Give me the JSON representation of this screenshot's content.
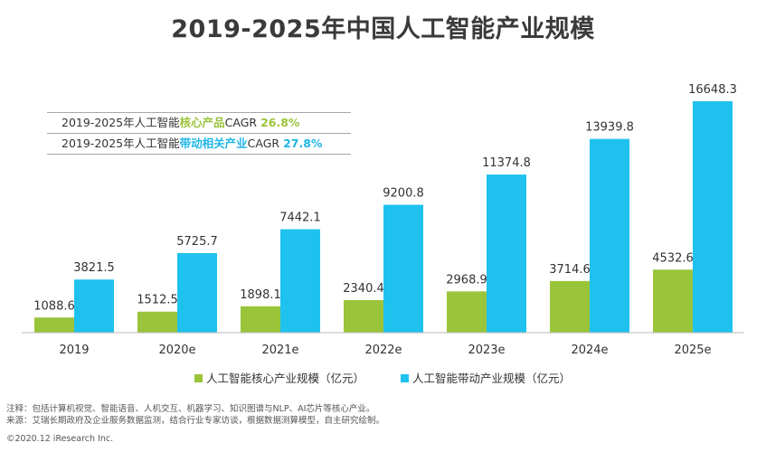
{
  "title": "2019-2025年中国人工智能产业规模",
  "cagr": [
    {
      "prefix": "2019-2025年人工智能",
      "highlight": "核心产品",
      "mid": "CAGR ",
      "value": "26.8%",
      "color": "green"
    },
    {
      "prefix": "2019-2025年人工智能",
      "highlight": "带动相关产业",
      "mid": "CAGR ",
      "value": "27.8%",
      "color": "blue"
    }
  ],
  "notes": {
    "line1": "注释：包括计算机视觉、智能语音、人机交互、机器学习、知识图谱与NLP、AI芯片等核心产业。",
    "line2": "来源：艾瑞长期政府及企业服务数据监测，结合行业专家访谈，根据数据测算模型，自主研究绘制。"
  },
  "copyright": "©2020.12 iResearch Inc.",
  "colors": {
    "core": "#9ac43a",
    "related": "#1fc2ee",
    "accent_green": "#9ac43a",
    "accent_blue": "#1fb6e6"
  },
  "chart_data": {
    "type": "bar",
    "title": "2019-2025年中国人工智能产业规模",
    "categories": [
      "2019",
      "2020e",
      "2021e",
      "2022e",
      "2023e",
      "2024e",
      "2025e"
    ],
    "series": [
      {
        "name": "人工智能核心产业规模（亿元）",
        "values": [
          1088.6,
          1512.5,
          1898.1,
          2340.4,
          2968.9,
          3714.6,
          4532.6
        ]
      },
      {
        "name": "人工智能带动产业规模（亿元）",
        "values": [
          3821.5,
          5725.7,
          7442.1,
          9200.8,
          11374.8,
          13939.8,
          16648.3
        ]
      }
    ],
    "value_labels": [
      [
        "1088.6",
        "1512.5",
        "1898.1",
        "2340.4",
        "2968.9",
        "3714.6",
        "4532.6"
      ],
      [
        "3821.5",
        "5725.7",
        "7442.1",
        "9200.8",
        "11374.8",
        "13939.8",
        "16648.3"
      ]
    ],
    "ylim": [
      0,
      16648.3
    ],
    "legend": "bottom",
    "grid": false
  }
}
